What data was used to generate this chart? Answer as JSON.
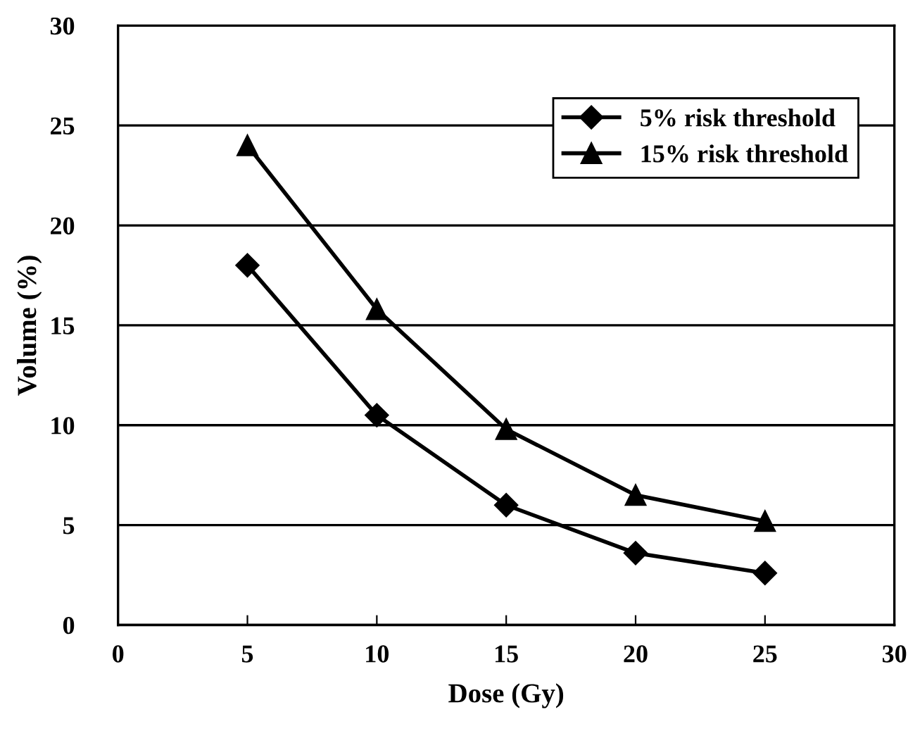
{
  "chart_data": {
    "type": "line",
    "xlabel": "Dose (Gy)",
    "ylabel": "Volume (%)",
    "x": [
      5,
      10,
      15,
      20,
      25
    ],
    "series": [
      {
        "name": "5% risk threshold",
        "color": "#000000",
        "marker": "diamond",
        "values": [
          18,
          10.5,
          6,
          3.6,
          2.6
        ]
      },
      {
        "name": "15% risk threshold",
        "color": "#000000",
        "marker": "triangle",
        "values": [
          24,
          15.8,
          9.8,
          6.5,
          5.2
        ]
      }
    ],
    "xlim": [
      0,
      30
    ],
    "xticks": [
      0,
      5,
      10,
      15,
      20,
      25,
      30
    ],
    "ylim": [
      0,
      30
    ],
    "yticks": [
      0,
      5,
      10,
      15,
      20,
      25,
      30
    ],
    "grid": "y",
    "legend": "top right",
    "line_style": "solid"
  }
}
